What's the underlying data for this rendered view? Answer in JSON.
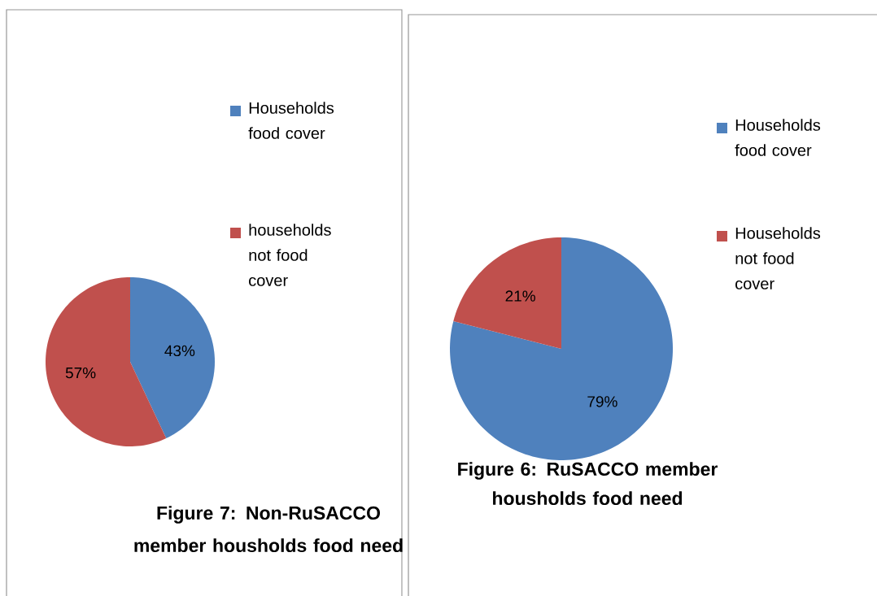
{
  "chart_data": [
    {
      "type": "pie",
      "title": "Figure 7: Non-RuSACCO member housholds food need",
      "categories": [
        "Households food cover",
        "households not food cover"
      ],
      "values": [
        43,
        57
      ],
      "colors": [
        "#4f81bd",
        "#c0504d"
      ],
      "value_labels": [
        "43%",
        "57%"
      ],
      "legend": "right"
    },
    {
      "type": "pie",
      "title": "Figure 6: RuSACCO member housholds food need",
      "categories": [
        "Households food cover",
        "Households not food cover"
      ],
      "values": [
        79,
        21
      ],
      "colors": [
        "#4f81bd",
        "#c0504d"
      ],
      "value_labels": [
        "79%",
        "21%"
      ],
      "legend": "right"
    }
  ]
}
